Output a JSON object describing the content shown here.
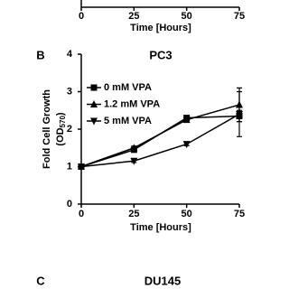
{
  "chart_data": [
    {
      "type": "line",
      "xlabel": "Time [Hours]",
      "xlim": [
        0,
        75
      ],
      "xticks": [
        0,
        25,
        50,
        75
      ]
    },
    {
      "type": "line",
      "panel_label": "B",
      "title": "PC3",
      "xlabel": "Time [Hours]",
      "ylabel": "Fold Cell Growth",
      "ylabel_unit": {
        "prefix": "(OD",
        "subscript": "570",
        "suffix": ")"
      },
      "x": [
        0,
        25,
        50,
        75
      ],
      "xlim": [
        0,
        75
      ],
      "xticks": [
        0,
        25,
        50,
        75
      ],
      "ylim": [
        0,
        4
      ],
      "yticks": [
        0,
        1,
        2,
        3,
        4
      ],
      "series": [
        {
          "name": "0 mM VPA",
          "marker": "square",
          "color": "#000000",
          "values": [
            1.0,
            1.45,
            2.3,
            2.35
          ],
          "errors": [
            0.03,
            0.05,
            0.06,
            0.15
          ]
        },
        {
          "name": "1.2 mM VPA",
          "marker": "triangle-up",
          "color": "#000000",
          "values": [
            1.0,
            1.5,
            2.25,
            2.65
          ],
          "errors": [
            0.03,
            0.05,
            0.06,
            0.45
          ]
        },
        {
          "name": "5 mM VPA",
          "marker": "triangle-down",
          "color": "#000000",
          "values": [
            1.0,
            1.15,
            1.6,
            2.4
          ],
          "errors": [
            0.03,
            0.04,
            0.04,
            0.6
          ]
        }
      ]
    },
    {
      "type": "line",
      "panel_label": "C",
      "title": "DU145"
    }
  ]
}
